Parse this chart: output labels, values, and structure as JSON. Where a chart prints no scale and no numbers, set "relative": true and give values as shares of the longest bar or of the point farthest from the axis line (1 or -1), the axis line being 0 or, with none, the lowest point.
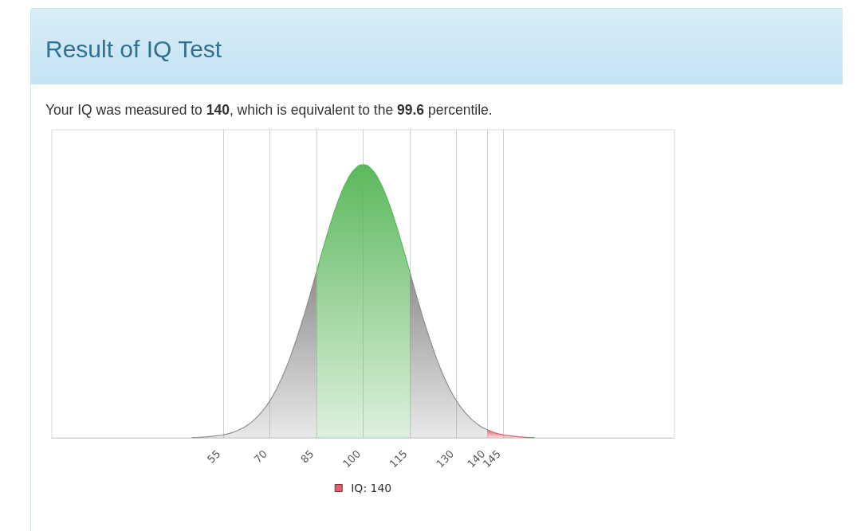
{
  "chart_data": {
    "type": "area",
    "title": "Result of IQ Test",
    "subtitle": "Your IQ was measured to 140, which is equivalent to the 99.6 percentile.",
    "relative": true,
    "xlim": [
      0,
      200
    ],
    "xticks": [
      55,
      70,
      85,
      100,
      115,
      130,
      140,
      145
    ],
    "grid": "x",
    "legend": "bottom",
    "marker": "none",
    "series": [
      {
        "color": "#8f8f8f",
        "x": [
          45,
          47.5,
          50,
          52.5,
          55,
          57.5,
          60,
          62.5,
          65,
          67.5,
          70,
          72.5,
          75,
          77.5,
          80,
          82.5,
          85,
          87.5,
          90,
          92.5,
          95,
          97.5,
          100,
          102.5,
          105,
          107.5,
          110,
          112.5,
          115,
          117.5,
          120,
          122.5,
          125,
          127.5,
          130,
          132.5,
          135,
          137.5,
          140
        ],
        "values": [
          0.001,
          0.002,
          0.004,
          0.007,
          0.011,
          0.018,
          0.029,
          0.044,
          0.066,
          0.096,
          0.135,
          0.186,
          0.249,
          0.325,
          0.411,
          0.506,
          0.607,
          null,
          null,
          null,
          null,
          null,
          null,
          null,
          null,
          null,
          null,
          null,
          0.607,
          0.506,
          0.411,
          0.325,
          0.249,
          0.186,
          0.135,
          0.096,
          0.066,
          0.044,
          0.029
        ]
      },
      {
        "color": "#5cb85c",
        "x": [
          85,
          87.5,
          90,
          92.5,
          95,
          97.5,
          100,
          102.5,
          105,
          107.5,
          110,
          112.5,
          115
        ],
        "values": [
          0.607,
          0.707,
          0.801,
          0.883,
          0.946,
          0.986,
          1,
          0.986,
          0.946,
          0.883,
          0.801,
          0.707,
          0.607
        ]
      },
      {
        "name": "IQ: 140",
        "color": "#e0606e",
        "x": [
          140,
          142.5,
          145,
          147.5,
          150,
          152.5,
          155
        ],
        "values": [
          0.029,
          0.018,
          0.011,
          0.007,
          0.004,
          0.002,
          0.001
        ]
      }
    ]
  }
}
